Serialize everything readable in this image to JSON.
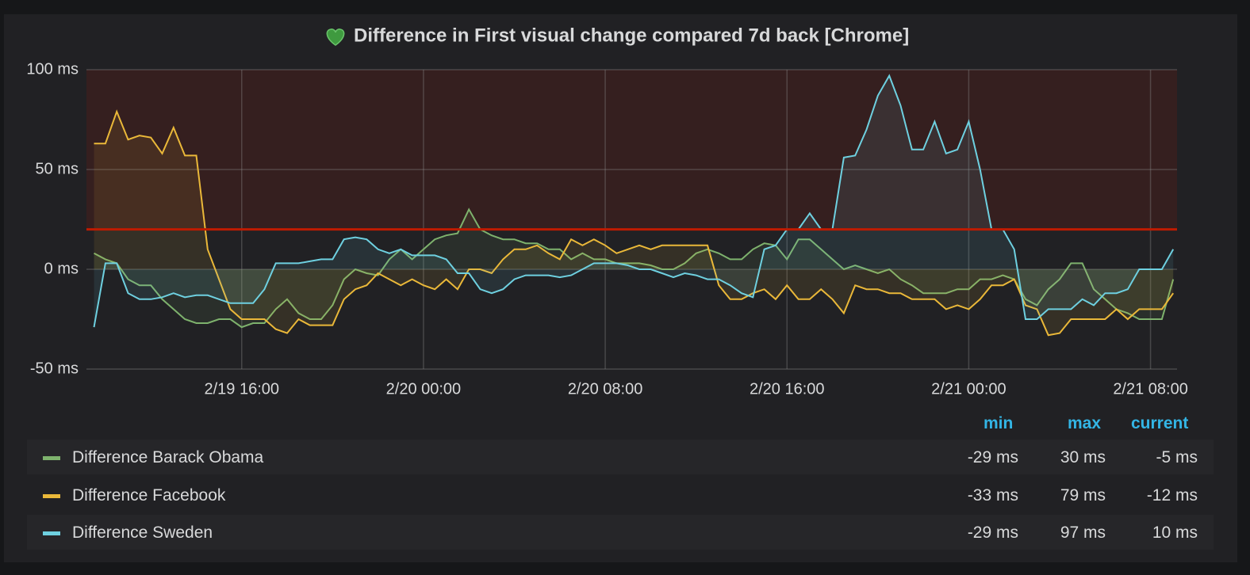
{
  "chart_data": {
    "type": "line",
    "title": "Difference in First visual change compared 7d back [Chrome]",
    "x": [
      "2/19 09:30",
      "2/19 10:00",
      "2/19 10:30",
      "2/19 11:00",
      "2/19 11:30",
      "2/19 12:00",
      "2/19 12:30",
      "2/19 13:00",
      "2/19 13:30",
      "2/19 14:00",
      "2/19 14:30",
      "2/19 15:00",
      "2/19 15:30",
      "2/19 16:00",
      "2/19 16:30",
      "2/19 17:00",
      "2/19 17:30",
      "2/19 18:00",
      "2/19 18:30",
      "2/19 19:00",
      "2/19 19:30",
      "2/19 20:00",
      "2/19 20:30",
      "2/19 21:00",
      "2/19 21:30",
      "2/19 22:00",
      "2/19 22:30",
      "2/19 23:00",
      "2/19 23:30",
      "2/20 00:00",
      "2/20 00:30",
      "2/20 01:00",
      "2/20 01:30",
      "2/20 02:00",
      "2/20 02:30",
      "2/20 03:00",
      "2/20 03:30",
      "2/20 04:00",
      "2/20 04:30",
      "2/20 05:00",
      "2/20 05:30",
      "2/20 06:00",
      "2/20 06:30",
      "2/20 07:00",
      "2/20 07:30",
      "2/20 08:00",
      "2/20 08:30",
      "2/20 09:00",
      "2/20 09:30",
      "2/20 10:00",
      "2/20 10:30",
      "2/20 11:00",
      "2/20 11:30",
      "2/20 12:00",
      "2/20 12:30",
      "2/20 13:00",
      "2/20 13:30",
      "2/20 14:00",
      "2/20 14:30",
      "2/20 15:00",
      "2/20 15:30",
      "2/20 16:00",
      "2/20 16:30",
      "2/20 17:00",
      "2/20 17:30",
      "2/20 18:00",
      "2/20 18:30",
      "2/20 19:00",
      "2/20 19:30",
      "2/20 20:00",
      "2/20 20:30",
      "2/20 21:00",
      "2/20 21:30",
      "2/20 22:00",
      "2/20 22:30",
      "2/20 23:00",
      "2/20 23:30",
      "2/21 00:00",
      "2/21 00:30",
      "2/21 01:00",
      "2/21 01:30",
      "2/21 02:00",
      "2/21 02:30",
      "2/21 03:00",
      "2/21 03:30",
      "2/21 04:00",
      "2/21 04:30",
      "2/21 05:00",
      "2/21 05:30",
      "2/21 06:00",
      "2/21 06:30",
      "2/21 07:00",
      "2/21 07:30",
      "2/21 08:00",
      "2/21 08:30",
      "2/21 09:00"
    ],
    "series": [
      {
        "name": "Difference Barack Obama",
        "color": "#7eb26d",
        "values": [
          8,
          5,
          3,
          -5,
          -8,
          -8,
          -15,
          -20,
          -25,
          -27,
          -27,
          -25,
          -25,
          -29,
          -27,
          -27,
          -20,
          -15,
          -22,
          -25,
          -25,
          -18,
          -5,
          0,
          -2,
          -3,
          5,
          10,
          5,
          10,
          15,
          17,
          18,
          30,
          20,
          17,
          15,
          15,
          13,
          13,
          10,
          10,
          5,
          8,
          5,
          5,
          3,
          3,
          3,
          2,
          0,
          0,
          3,
          8,
          10,
          8,
          5,
          5,
          10,
          13,
          12,
          5,
          15,
          15,
          10,
          5,
          0,
          2,
          0,
          -2,
          0,
          -5,
          -8,
          -12,
          -12,
          -12,
          -10,
          -10,
          -5,
          -5,
          -3,
          -5,
          -15,
          -18,
          -10,
          -5,
          3,
          3,
          -10,
          -15,
          -20,
          -22,
          -25,
          -25,
          -25,
          -5
        ]
      },
      {
        "name": "Difference Facebook",
        "color": "#eab839",
        "values": [
          63,
          63,
          79,
          65,
          67,
          66,
          58,
          71,
          57,
          57,
          10,
          -5,
          -20,
          -25,
          -25,
          -25,
          -30,
          -32,
          -25,
          -28,
          -28,
          -28,
          -15,
          -10,
          -8,
          -2,
          -5,
          -8,
          -5,
          -8,
          -10,
          -5,
          -10,
          0,
          0,
          -2,
          5,
          10,
          10,
          12,
          8,
          5,
          15,
          12,
          15,
          12,
          8,
          10,
          12,
          10,
          12,
          12,
          12,
          12,
          12,
          -8,
          -15,
          -15,
          -12,
          -10,
          -15,
          -8,
          -15,
          -15,
          -10,
          -15,
          -22,
          -8,
          -10,
          -10,
          -12,
          -12,
          -15,
          -15,
          -15,
          -20,
          -18,
          -20,
          -15,
          -8,
          -8,
          -5,
          -18,
          -20,
          -33,
          -32,
          -25,
          -25,
          -25,
          -25,
          -20,
          -25,
          -20,
          -20,
          -20,
          -12
        ]
      },
      {
        "name": "Difference Sweden",
        "color": "#6ed0e0",
        "values": [
          -29,
          3,
          3,
          -12,
          -15,
          -15,
          -14,
          -12,
          -14,
          -13,
          -13,
          -15,
          -17,
          -17,
          -17,
          -10,
          3,
          3,
          3,
          4,
          5,
          5,
          15,
          16,
          15,
          10,
          8,
          10,
          7,
          7,
          7,
          5,
          -2,
          -2,
          -10,
          -12,
          -10,
          -5,
          -3,
          -3,
          -3,
          -4,
          -3,
          0,
          3,
          3,
          3,
          2,
          0,
          0,
          -2,
          -4,
          -2,
          -3,
          -5,
          -5,
          -8,
          -12,
          -14,
          10,
          12,
          20,
          20,
          28,
          20,
          20,
          56,
          57,
          70,
          87,
          97,
          82,
          60,
          60,
          74,
          58,
          60,
          74,
          50,
          20,
          20,
          10,
          -25,
          -25,
          -20,
          -20,
          -20,
          -15,
          -18,
          -12,
          -12,
          -10,
          0,
          0,
          0,
          10
        ]
      }
    ],
    "xlim": [
      "2/19 09:10",
      "2/21 09:10"
    ],
    "xticks": [
      "2/19 16:00",
      "2/20 00:00",
      "2/20 08:00",
      "2/20 16:00",
      "2/21 00:00",
      "2/21 08:00"
    ],
    "ylim": [
      -50,
      100
    ],
    "yticks": [
      {
        "value": -50,
        "label": "-50 ms"
      },
      {
        "value": 0,
        "label": "0 ms"
      },
      {
        "value": 50,
        "label": "50 ms"
      },
      {
        "value": 100,
        "label": "100 ms"
      }
    ],
    "grid": true,
    "threshold": {
      "value": 20,
      "color": "#bf1b00"
    },
    "legend": {
      "columns": [
        "min",
        "max",
        "current"
      ],
      "rows": [
        [
          "-29 ms",
          "30 ms",
          "-5 ms"
        ],
        [
          "-33 ms",
          "79 ms",
          "-12 ms"
        ],
        [
          "-29 ms",
          "97 ms",
          "10 ms"
        ]
      ]
    }
  }
}
